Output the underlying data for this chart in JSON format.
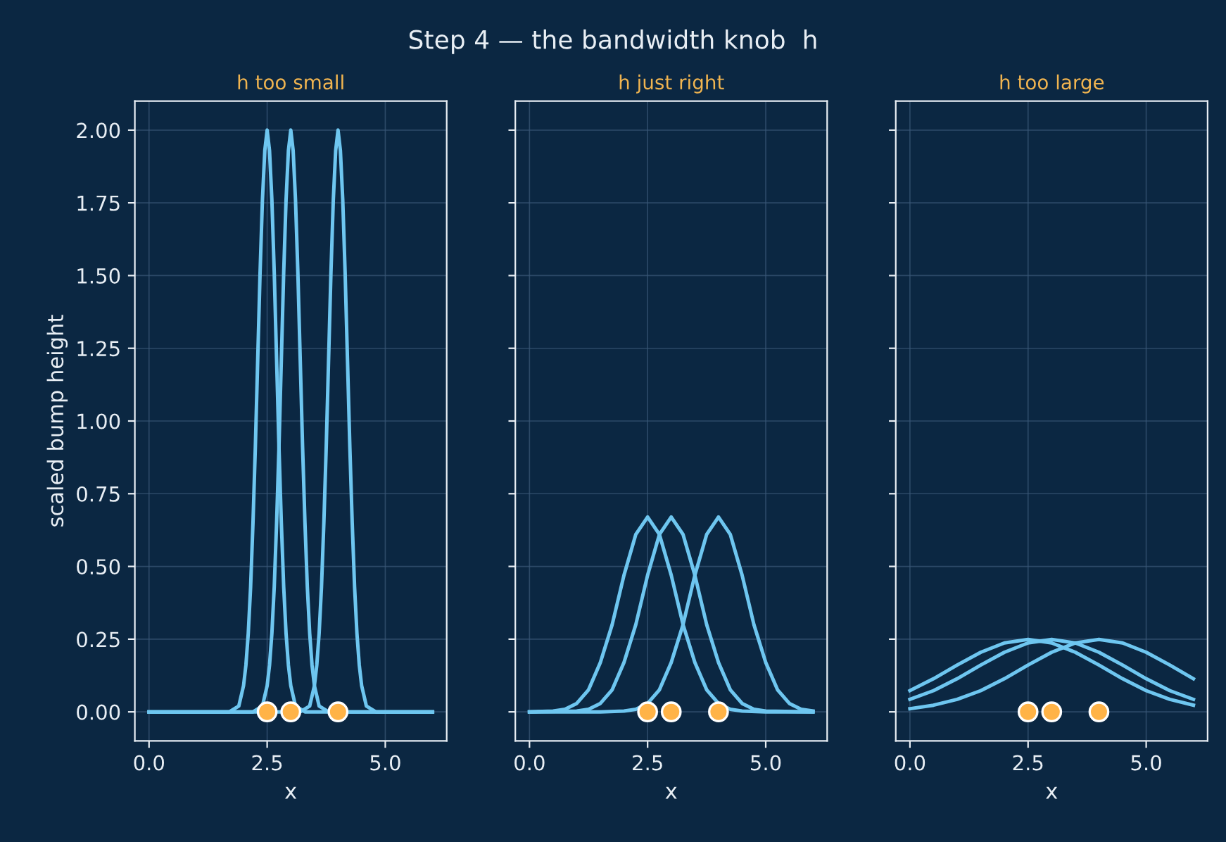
{
  "chart_data": [
    {
      "type": "line",
      "title": "h too small",
      "xlabel": "x",
      "ylabel": "scaled bump height",
      "annotations": [
        "Step 4 — the bandwidth knob  h"
      ],
      "xlim": [
        -0.3,
        6.3
      ],
      "xticks": [
        {
          "value": 0,
          "label": "0.0"
        },
        {
          "value": 2.5,
          "label": "2.5"
        },
        {
          "value": 5,
          "label": "5.0"
        }
      ],
      "ylim": [
        -0.1,
        2.1
      ],
      "yticks": [
        {
          "value": 0,
          "label": "0.00"
        },
        {
          "value": 0.25,
          "label": "0.25"
        },
        {
          "value": 0.5,
          "label": "0.50"
        },
        {
          "value": 0.75,
          "label": "0.75"
        },
        {
          "value": 1,
          "label": "1.00"
        },
        {
          "value": 1.25,
          "label": "1.25"
        },
        {
          "value": 1.5,
          "label": "1.50"
        },
        {
          "value": 1.75,
          "label": "1.75"
        },
        {
          "value": 2,
          "label": "2.00"
        }
      ],
      "grid": true,
      "series": [
        {
          "color": "#6ec6f0",
          "x": [
            0,
            1.7,
            1.9,
            2.0,
            2.05,
            2.1,
            2.15,
            2.2,
            2.25,
            2.3,
            2.35,
            2.4,
            2.45,
            2.5,
            2.55,
            2.6,
            2.65,
            2.7,
            2.75,
            2.8,
            2.85,
            2.9,
            2.95,
            3.0,
            3.1,
            3.3,
            6
          ],
          "values": [
            0,
            0,
            0.02,
            0.09,
            0.16,
            0.27,
            0.43,
            0.65,
            0.91,
            1.21,
            1.51,
            1.76,
            1.93,
            2.0,
            1.93,
            1.76,
            1.51,
            1.21,
            0.91,
            0.65,
            0.43,
            0.27,
            0.16,
            0.09,
            0.02,
            0,
            0
          ]
        },
        {
          "color": "#6ec6f0",
          "x": [
            0,
            2.2,
            2.4,
            2.5,
            2.55,
            2.6,
            2.65,
            2.7,
            2.75,
            2.8,
            2.85,
            2.9,
            2.95,
            3,
            3.05,
            3.1,
            3.15,
            3.2,
            3.25,
            3.3,
            3.35,
            3.4,
            3.45,
            3.5,
            3.6,
            3.8,
            6
          ],
          "values": [
            0,
            0,
            0.02,
            0.09,
            0.16,
            0.27,
            0.43,
            0.65,
            0.91,
            1.21,
            1.51,
            1.76,
            1.93,
            2.0,
            1.93,
            1.76,
            1.51,
            1.21,
            0.91,
            0.65,
            0.43,
            0.27,
            0.16,
            0.09,
            0.02,
            0,
            0
          ]
        },
        {
          "color": "#6ec6f0",
          "x": [
            0,
            3.2,
            3.4,
            3.5,
            3.55,
            3.6,
            3.65,
            3.7,
            3.75,
            3.8,
            3.85,
            3.9,
            3.95,
            4,
            4.05,
            4.1,
            4.15,
            4.2,
            4.25,
            4.3,
            4.35,
            4.4,
            4.45,
            4.5,
            4.6,
            4.8,
            6
          ],
          "values": [
            0,
            0,
            0.02,
            0.09,
            0.16,
            0.27,
            0.43,
            0.65,
            0.91,
            1.21,
            1.51,
            1.76,
            1.93,
            2.0,
            1.93,
            1.76,
            1.51,
            1.21,
            0.91,
            0.65,
            0.43,
            0.27,
            0.16,
            0.09,
            0.02,
            0,
            0
          ]
        },
        {
          "type": "scatter",
          "marker": "circle",
          "color": "#ffb347",
          "x": [
            2.5,
            3,
            4
          ],
          "values": [
            0,
            0,
            0
          ]
        }
      ]
    },
    {
      "type": "line",
      "title": "h just right",
      "xlabel": "x",
      "tick_labels": "x",
      "xlim": [
        -0.3,
        6.3
      ],
      "xticks": [
        {
          "value": 0,
          "label": "0.0"
        },
        {
          "value": 2.5,
          "label": "2.5"
        },
        {
          "value": 5,
          "label": "5.0"
        }
      ],
      "ylim": [
        -0.1,
        2.1
      ],
      "yticks": [
        0,
        0.25,
        0.5,
        0.75,
        1,
        1.25,
        1.5,
        1.75,
        2
      ],
      "grid": true,
      "series": [
        {
          "color": "#6ec6f0",
          "x": [
            0,
            0.5,
            0.75,
            1.0,
            1.25,
            1.5,
            1.75,
            2.0,
            2.25,
            2.5,
            2.75,
            3.0,
            3.25,
            3.5,
            3.75,
            4.0,
            4.25,
            4.5,
            5,
            6
          ],
          "values": [
            0,
            0.003,
            0.009,
            0.029,
            0.076,
            0.17,
            0.3,
            0.47,
            0.61,
            0.67,
            0.61,
            0.47,
            0.3,
            0.17,
            0.076,
            0.029,
            0.009,
            0.003,
            0,
            0
          ]
        },
        {
          "color": "#6ec6f0",
          "x": [
            0,
            1.0,
            1.25,
            1.5,
            1.75,
            2.0,
            2.25,
            2.5,
            2.75,
            3.0,
            3.25,
            3.5,
            3.75,
            4.0,
            4.25,
            4.5,
            4.75,
            5.0,
            6
          ],
          "values": [
            0,
            0.003,
            0.009,
            0.029,
            0.076,
            0.17,
            0.3,
            0.47,
            0.61,
            0.67,
            0.61,
            0.47,
            0.3,
            0.17,
            0.076,
            0.029,
            0.009,
            0.003,
            0
          ]
        },
        {
          "color": "#6ec6f0",
          "x": [
            0,
            1.5,
            2.0,
            2.25,
            2.5,
            2.75,
            3.0,
            3.25,
            3.5,
            3.75,
            4.0,
            4.25,
            4.5,
            4.75,
            5.0,
            5.25,
            5.5,
            5.75,
            6
          ],
          "values": [
            0,
            0,
            0.003,
            0.009,
            0.029,
            0.076,
            0.17,
            0.3,
            0.47,
            0.61,
            0.67,
            0.61,
            0.47,
            0.3,
            0.17,
            0.076,
            0.029,
            0.009,
            0.003
          ]
        },
        {
          "type": "scatter",
          "marker": "circle",
          "color": "#ffb347",
          "x": [
            2.5,
            3,
            4
          ],
          "values": [
            0,
            0,
            0
          ]
        }
      ]
    },
    {
      "type": "line",
      "title": "h too large",
      "xlabel": "x",
      "tick_labels": "x",
      "xlim": [
        -0.3,
        6.3
      ],
      "xticks": [
        {
          "value": 0,
          "label": "0.0"
        },
        {
          "value": 2.5,
          "label": "2.5"
        },
        {
          "value": 5,
          "label": "5.0"
        }
      ],
      "ylim": [
        -0.1,
        2.1
      ],
      "yticks": [
        0,
        0.25,
        0.5,
        0.75,
        1,
        1.25,
        1.5,
        1.75,
        2
      ],
      "grid": true,
      "series": [
        {
          "color": "#6ec6f0",
          "x": [
            0,
            0.5,
            1,
            1.5,
            2,
            2.5,
            3,
            3.5,
            4,
            4.5,
            5,
            5.5,
            6
          ],
          "values": [
            0.073,
            0.114,
            0.161,
            0.205,
            0.237,
            0.249,
            0.237,
            0.205,
            0.161,
            0.114,
            0.073,
            0.043,
            0.023
          ]
        },
        {
          "color": "#6ec6f0",
          "x": [
            0,
            0.5,
            1,
            1.5,
            2,
            2.5,
            3,
            3.5,
            4,
            4.5,
            5,
            5.5,
            6
          ],
          "values": [
            0.043,
            0.073,
            0.114,
            0.161,
            0.205,
            0.237,
            0.249,
            0.237,
            0.205,
            0.161,
            0.114,
            0.073,
            0.043
          ]
        },
        {
          "color": "#6ec6f0",
          "x": [
            0,
            0.5,
            1,
            1.5,
            2,
            2.5,
            3,
            3.5,
            4,
            4.5,
            5,
            5.5,
            6
          ],
          "values": [
            0.011,
            0.023,
            0.043,
            0.073,
            0.114,
            0.161,
            0.205,
            0.237,
            0.249,
            0.237,
            0.205,
            0.161,
            0.114
          ]
        },
        {
          "type": "scatter",
          "marker": "circle",
          "color": "#ffb347",
          "x": [
            2.5,
            3,
            4
          ],
          "values": [
            0,
            0,
            0
          ]
        }
      ]
    }
  ]
}
